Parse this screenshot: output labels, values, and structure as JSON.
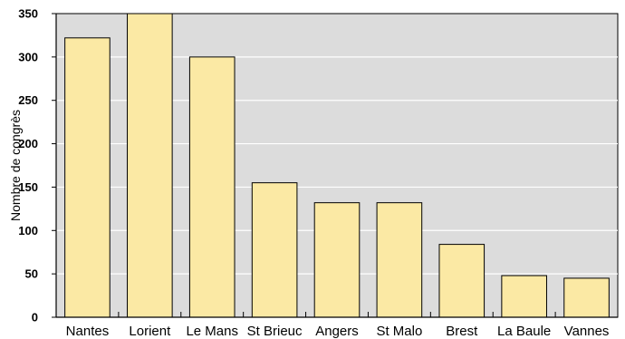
{
  "colors": {
    "plot_background": "#dcdcdc",
    "bar_fill": "#fbe9a4",
    "bar_stroke": "#000000",
    "gridline": "#ffffff"
  },
  "chart_data": {
    "type": "bar",
    "title": "",
    "xlabel": "",
    "ylabel": "Nombre de congrès",
    "categories": [
      "Nantes",
      "Lorient",
      "Le Mans",
      "St Brieuc",
      "Angers",
      "St Malo",
      "Brest",
      "La Baule",
      "Vannes"
    ],
    "values": [
      322,
      350,
      300,
      155,
      132,
      132,
      84,
      48,
      45
    ],
    "ylim": [
      0,
      350
    ],
    "yticks": [
      0,
      50,
      100,
      150,
      200,
      250,
      300,
      350
    ],
    "grid": true,
    "legend": "none"
  }
}
